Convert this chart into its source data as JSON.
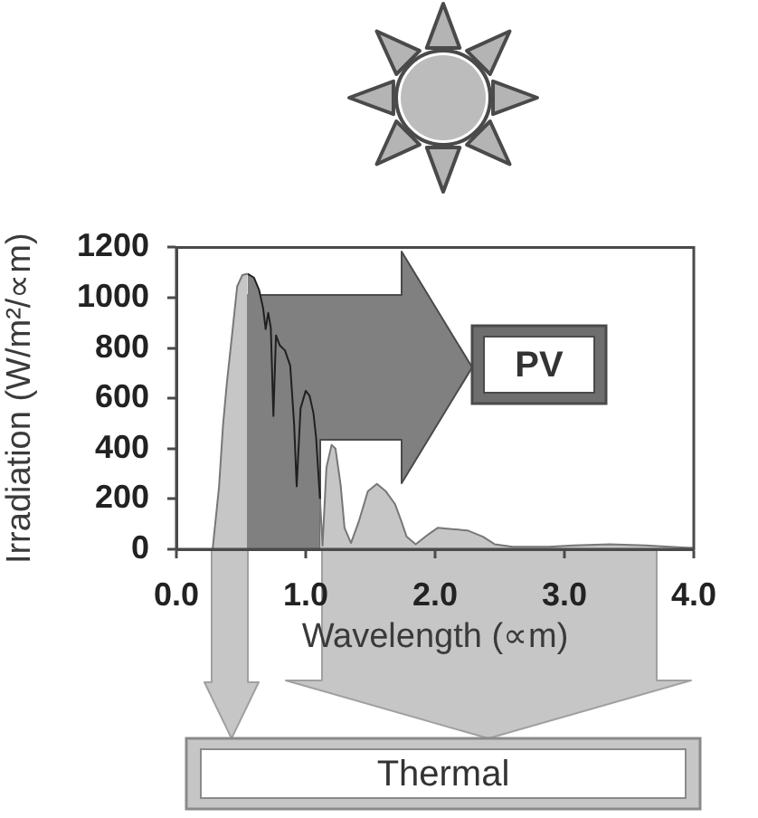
{
  "chart_data": {
    "type": "area",
    "xlabel": "Wavelength (∝m)",
    "ylabel": "Irradiation (W/m²/∝m)",
    "x": [
      0.28,
      0.33,
      0.36,
      0.39,
      0.43,
      0.47,
      0.51,
      0.55,
      0.6,
      0.64,
      0.67,
      0.69,
      0.71,
      0.73,
      0.75,
      0.77,
      0.8,
      0.84,
      0.88,
      0.91,
      0.93,
      0.96,
      1.0,
      1.03,
      1.06,
      1.08,
      1.11,
      1.13,
      1.16,
      1.2,
      1.23,
      1.27,
      1.3,
      1.35,
      1.41,
      1.48,
      1.55,
      1.62,
      1.69,
      1.74,
      1.78,
      1.85,
      1.95,
      2.02,
      2.13,
      2.25,
      2.37,
      2.46,
      2.6,
      2.88,
      3.07,
      3.35,
      3.63,
      3.81,
      4.0
    ],
    "series": [
      {
        "color": "#c6c6c6",
        "values": [
          0,
          250,
          490,
          660,
          850,
          1045,
          1090,
          1095,
          null,
          null,
          null,
          null,
          null,
          null,
          null,
          null,
          null,
          null,
          null,
          null,
          null,
          null,
          null,
          null,
          null,
          null,
          200,
          15,
          325,
          415,
          400,
          255,
          85,
          25,
          110,
          230,
          260,
          230,
          180,
          110,
          50,
          20,
          60,
          85,
          80,
          75,
          50,
          20,
          10,
          10,
          15,
          20,
          15,
          10,
          5
        ]
      },
      {
        "color": "#808080",
        "x": [
          0.55,
          0.6,
          0.64,
          0.67,
          0.69,
          0.71,
          0.73,
          0.75,
          0.77,
          0.8,
          0.84,
          0.88,
          0.91,
          0.93,
          0.96,
          1.0,
          1.03,
          1.06,
          1.08,
          1.11
        ],
        "values": [
          1095,
          1080,
          1030,
          960,
          875,
          940,
          880,
          530,
          850,
          810,
          790,
          730,
          500,
          250,
          560,
          630,
          610,
          540,
          445,
          200
        ]
      }
    ],
    "xlim": [
      0,
      4
    ],
    "xticks": [
      {
        "value": 0,
        "label": "0.0"
      },
      {
        "value": 1,
        "label": "1.0"
      },
      {
        "value": 2,
        "label": "2.0"
      },
      {
        "value": 3,
        "label": "3.0"
      },
      {
        "value": 4,
        "label": "4.0"
      }
    ],
    "ylim": [
      0,
      1200
    ],
    "yticks": [
      0,
      200,
      400,
      600,
      800,
      1000,
      1200
    ],
    "annotations": [
      "PV",
      "Thermal"
    ]
  }
}
